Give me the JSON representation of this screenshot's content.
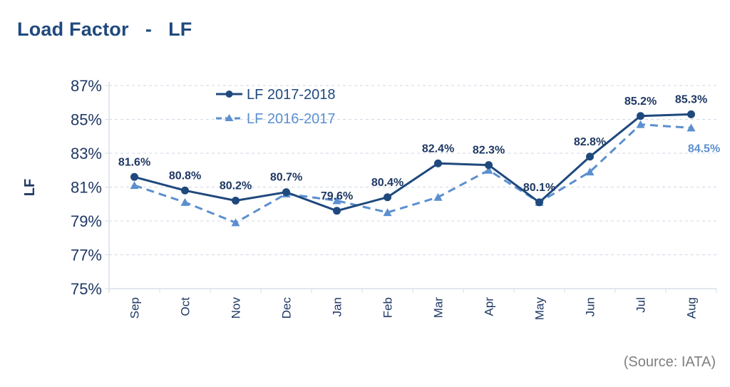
{
  "title": "Load Factor   -   LF",
  "source": "(Source: IATA)",
  "chart_data": {
    "type": "line",
    "title": "Load Factor   -   LF",
    "xlabel": "",
    "ylabel": "LF",
    "ylim": [
      75,
      87
    ],
    "yticks": [
      75,
      77,
      79,
      81,
      83,
      85,
      87
    ],
    "ytick_labels": [
      "75%",
      "77%",
      "79%",
      "81%",
      "83%",
      "85%",
      "87%"
    ],
    "grid": true,
    "legend": "top-left",
    "categories": [
      "Sep",
      "Oct",
      "Nov",
      "Dec",
      "Jan",
      "Feb",
      "Mar",
      "Apr",
      "May",
      "Jun",
      "Jul",
      "Aug"
    ],
    "series": [
      {
        "name": "LF 2017-2018",
        "color": "#1f497d",
        "style": "solid",
        "marker": "circle",
        "values": [
          81.6,
          80.8,
          80.2,
          80.7,
          79.6,
          80.4,
          82.4,
          82.3,
          80.1,
          82.8,
          85.2,
          85.3
        ],
        "labels": [
          "81.6%",
          "80.8%",
          "80.2%",
          "80.7%",
          "79.6%",
          "80.4%",
          "82.4%",
          "82.3%",
          "80.1%",
          "82.8%",
          "85.2%",
          "85.3%"
        ]
      },
      {
        "name": "LF 2016-2017",
        "color": "#5b8fd0",
        "style": "dashed",
        "marker": "triangle",
        "values": [
          81.1,
          80.1,
          78.9,
          80.6,
          80.2,
          79.5,
          80.4,
          82.0,
          80.1,
          81.9,
          84.7,
          84.5
        ],
        "labels": [
          "",
          "",
          "",
          "",
          "",
          "",
          "",
          "",
          "",
          "",
          "",
          "84.5%"
        ]
      }
    ]
  }
}
